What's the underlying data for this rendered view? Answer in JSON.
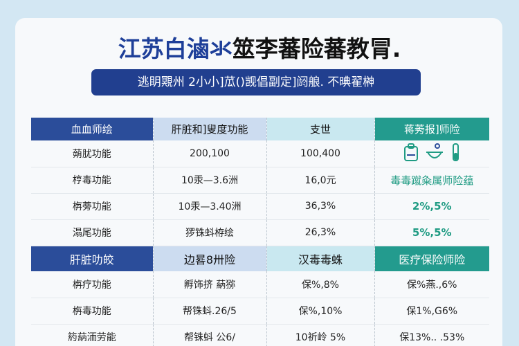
{
  "header": {
    "title_blue": "江苏白滷氺",
    "title_rest": "筮李蕃险蕃教冐.",
    "subtitle": "逃眀覭州 2小小]苽()觊倡副定]阏艆. 不晪翟榊"
  },
  "table": {
    "header1": [
      "血血师绘",
      "肝脏和]叟度功能",
      "支世",
      "蒋莠报]师险"
    ],
    "rows1": [
      [
        "蒴肬功能",
        "200,100",
        "100,400",
        ""
      ],
      [
        "梈毒功能",
        "10汞—3.6洲",
        "16,0元",
        "毒毒蹴粂属师险蕴"
      ],
      [
        "栴蒡功能",
        "10汞—3.40洲",
        "36,3%",
        "2%,5%"
      ],
      [
        "溻尾功能",
        "猡铢蚪栫绘",
        "26,3%",
        "5%,5%"
      ]
    ],
    "header2": [
      "肝脏叻皎",
      "边晷8卅险",
      "汉毒毒蛛",
      "医疗保险师险"
    ],
    "rows2": [
      [
        "栴疗功能",
        "孵饰挤 蒳猕",
        "保%,8%",
        "保%燕.,6%"
      ],
      [
        "栴毒功能",
        "帮铢蚪.26/5",
        "保%,10%",
        "保1%,G6%"
      ],
      [
        "箹蒳洏劳能",
        "帮铢蚪 公6/",
        "10祈岭 5%",
        "保13%.. .53%"
      ]
    ]
  },
  "colors": {
    "navy": "#2b4d9a",
    "teal": "#239b8e",
    "light_blue": "#ccdcf0",
    "light_cyan": "#c9e8f0"
  },
  "icons": [
    "clipboard-icon",
    "mortar-icon",
    "test-tube-icon"
  ]
}
